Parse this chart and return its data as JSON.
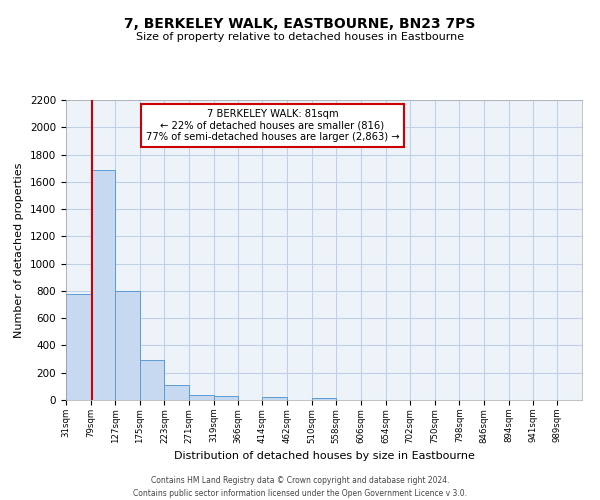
{
  "title": "7, BERKELEY WALK, EASTBOURNE, BN23 7PS",
  "subtitle": "Size of property relative to detached houses in Eastbourne",
  "xlabel": "Distribution of detached houses by size in Eastbourne",
  "ylabel": "Number of detached properties",
  "bin_labels": [
    "31sqm",
    "79sqm",
    "127sqm",
    "175sqm",
    "223sqm",
    "271sqm",
    "319sqm",
    "366sqm",
    "414sqm",
    "462sqm",
    "510sqm",
    "558sqm",
    "606sqm",
    "654sqm",
    "702sqm",
    "750sqm",
    "798sqm",
    "846sqm",
    "894sqm",
    "941sqm",
    "989sqm"
  ],
  "bar_values": [
    775,
    1690,
    800,
    295,
    110,
    38,
    28,
    0,
    22,
    0,
    18,
    0,
    0,
    0,
    0,
    0,
    0,
    0,
    0,
    0,
    0
  ],
  "bar_color": "#c6d9f0",
  "bar_edge_color": "#5b9bd5",
  "ylim": [
    0,
    2200
  ],
  "yticks": [
    0,
    200,
    400,
    600,
    800,
    1000,
    1200,
    1400,
    1600,
    1800,
    2000,
    2200
  ],
  "property_line_x": 81,
  "property_line_color": "#cc0000",
  "annotation_title": "7 BERKELEY WALK: 81sqm",
  "annotation_line1": "← 22% of detached houses are smaller (816)",
  "annotation_line2": "77% of semi-detached houses are larger (2,863) →",
  "annotation_box_color": "#ffffff",
  "annotation_box_edge": "#cc0000",
  "grid_color": "#c0d0e8",
  "background_color": "#eef3fa",
  "footer_line1": "Contains HM Land Registry data © Crown copyright and database right 2024.",
  "footer_line2": "Contains public sector information licensed under the Open Government Licence v 3.0.",
  "bin_edges": [
    31,
    79,
    127,
    175,
    223,
    271,
    319,
    366,
    414,
    462,
    510,
    558,
    606,
    654,
    702,
    750,
    798,
    846,
    894,
    941,
    989
  ],
  "bin_width": 48
}
